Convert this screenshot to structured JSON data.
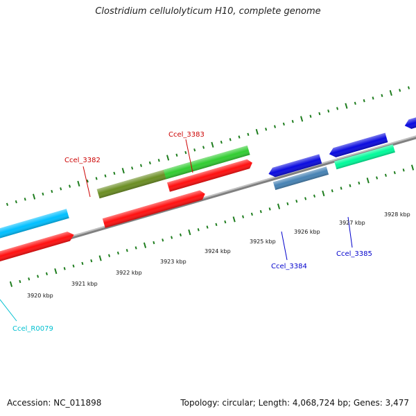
{
  "title": "Clostridium cellulolyticum H10, complete genome",
  "footer": {
    "accession": "Accession: NC_011898",
    "summary": "Topology: circular; Length: 4,068,724 bp; Genes: 3,477"
  },
  "tick_labels": [
    "3920 kbp",
    "3921 kbp",
    "3922 kbp",
    "3923 kbp",
    "3924 kbp",
    "3925 kbp",
    "3926 kbp",
    "3927 kbp",
    "3928 kbp"
  ],
  "gene_labels": {
    "ccel_3382": "Ccel_3382",
    "ccel_3383": "Ccel_3383",
    "ccel_3384": "Ccel_3384",
    "ccel_3385": "Ccel_3385",
    "ccel_r0079": "Ccel_R0079"
  },
  "colors": {
    "backbone": "#808080",
    "tick": "#1e7d1e",
    "red": "#ff1010",
    "olive": "#6b8e23",
    "green": "#32cd32",
    "blue": "#0a0adf",
    "steelblue": "#4682b4",
    "aquamarine": "#00fa9a",
    "cyan": "#00bfff",
    "label_red": "#cc0000",
    "label_blue": "#0000cc",
    "label_cyan": "#00c0d0"
  }
}
